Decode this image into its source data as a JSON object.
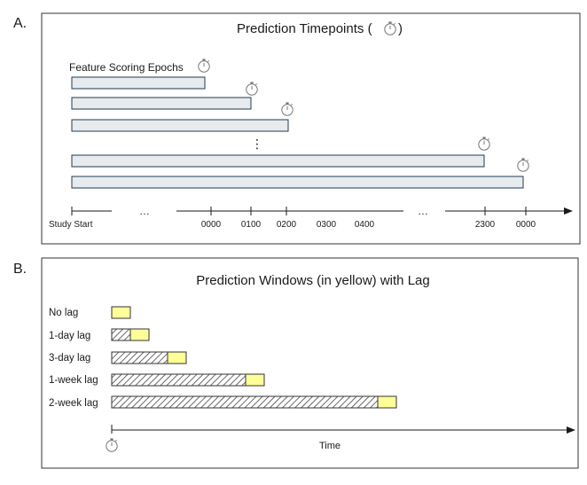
{
  "panelA": {
    "letter": "A.",
    "title": "Prediction Timepoints (",
    "title_close": ")",
    "epochs_label": "Feature Scoring Epochs",
    "ellipsis_vertical": "⋮",
    "axis_labels": [
      "Study Start",
      "…",
      "0000",
      "0100",
      "0200",
      "0300",
      "0400",
      "…",
      "2300",
      "0000"
    ],
    "epoch_count": 5,
    "icons": [
      "stopwatch-icon"
    ]
  },
  "panelB": {
    "letter": "B.",
    "title": "Prediction Windows (in yellow) with Lag",
    "rows": [
      {
        "label": "No lag",
        "lag": "0"
      },
      {
        "label": "1-day lag",
        "lag": "1 day"
      },
      {
        "label": "3-day lag",
        "lag": "3 days"
      },
      {
        "label": "1-week lag",
        "lag": "7 days"
      },
      {
        "label": "2-week lag",
        "lag": "14 days"
      }
    ],
    "axis_label": "Time"
  },
  "colors": {
    "window_yellow": "#ffff99",
    "epoch_fill": "#e7ebee",
    "outline": "#1f3b52"
  }
}
